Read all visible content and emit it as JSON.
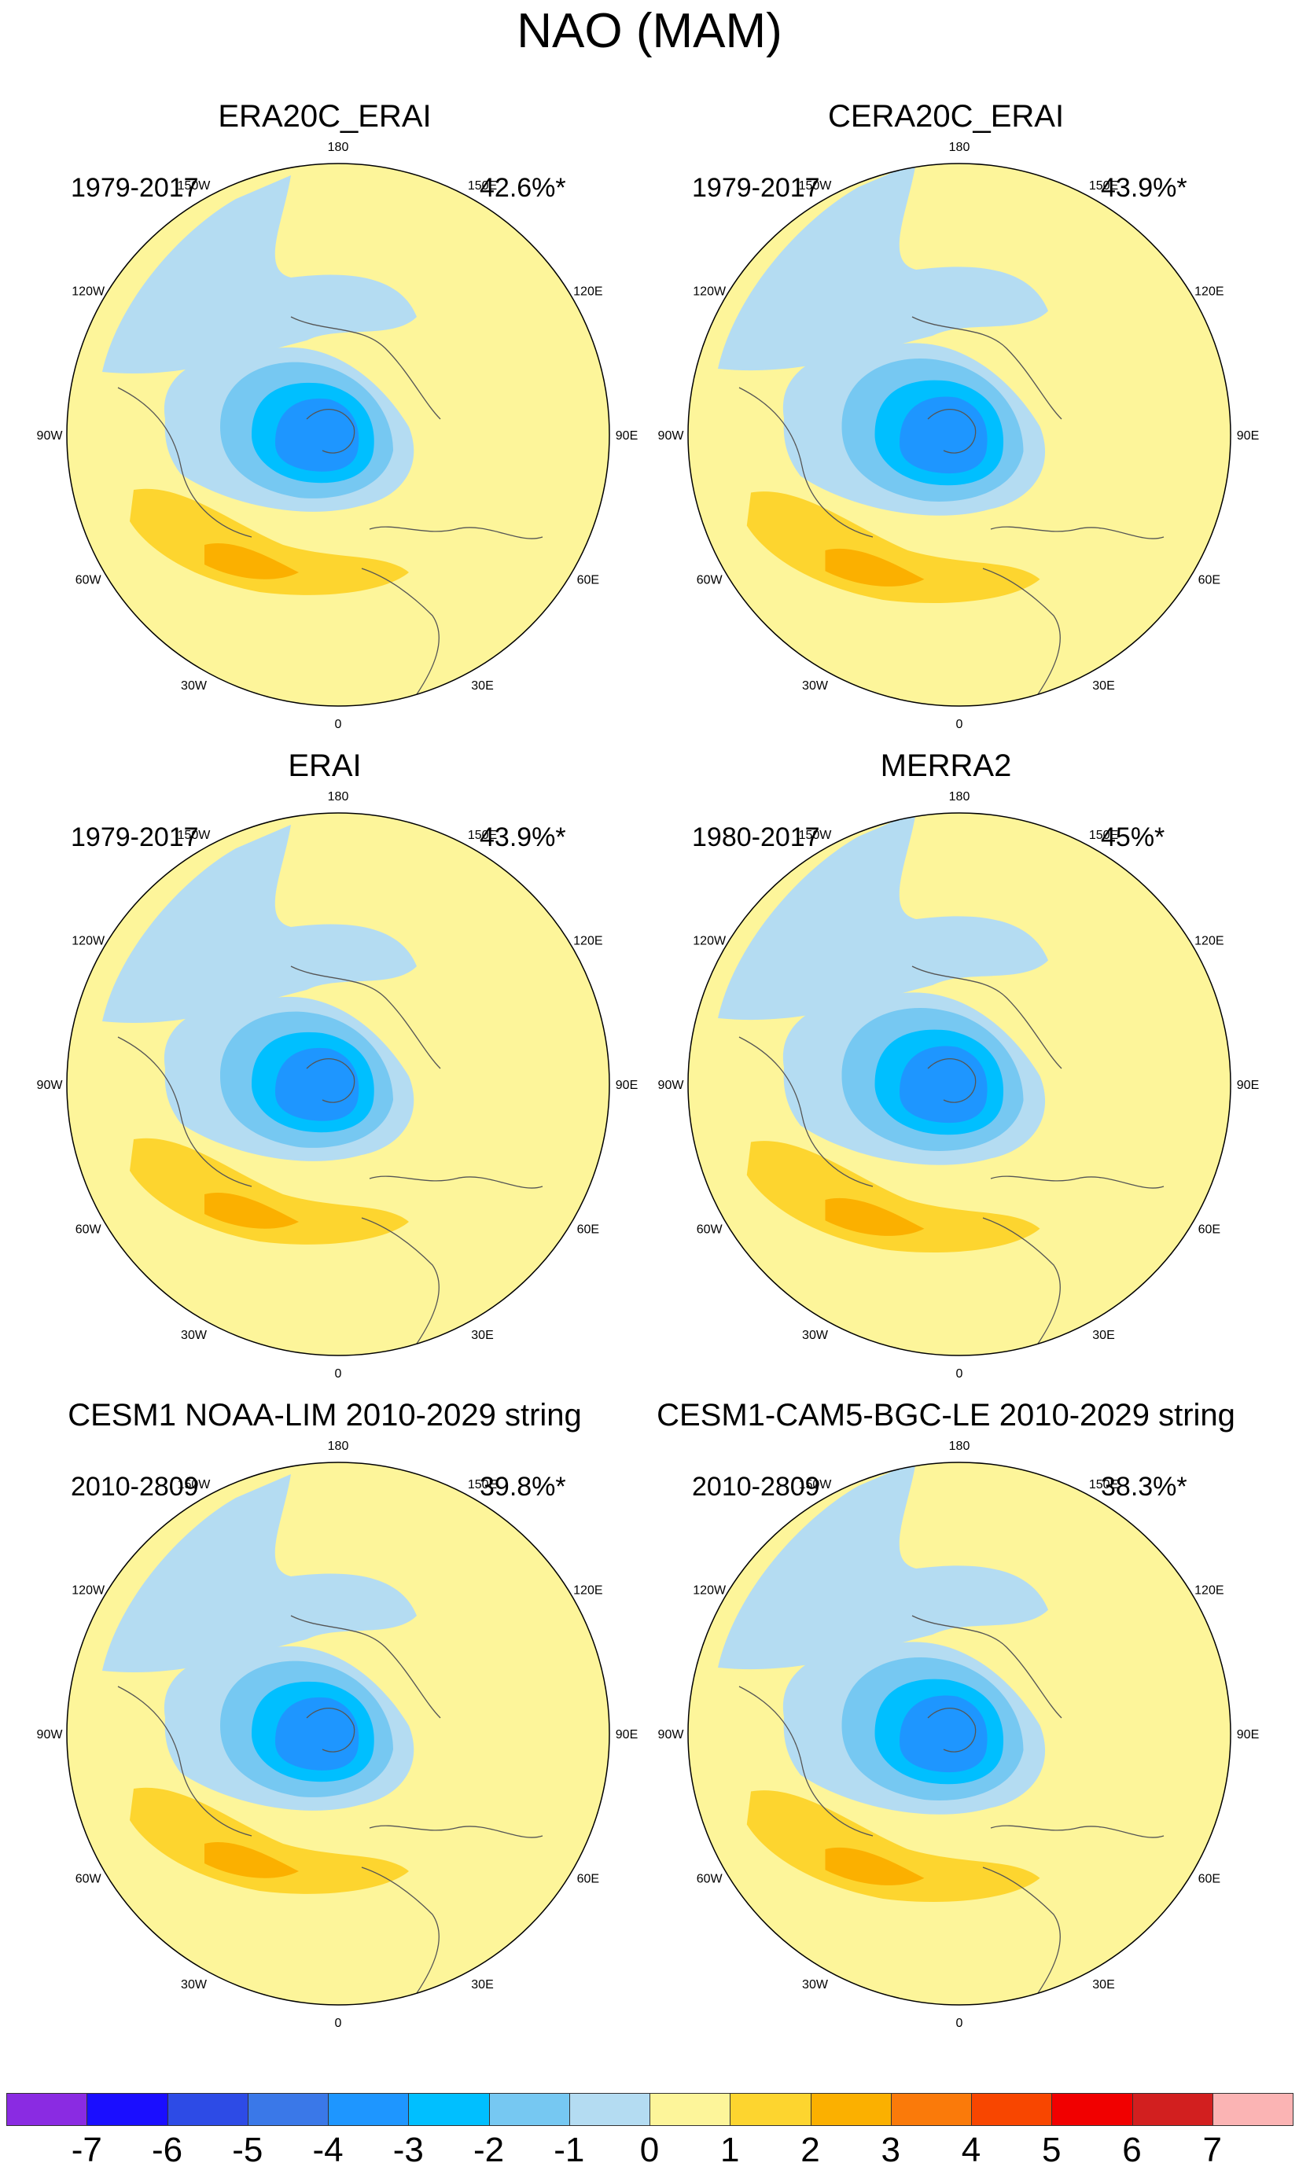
{
  "title": "NAO (MAM)",
  "colors": {
    "neg7": "#8a2be2",
    "neg6": "#1a0eff",
    "neg5": "#2d4be6",
    "neg4": "#3a78e8",
    "neg3": "#1e96ff",
    "neg2": "#00bfff",
    "neg1": "#76c8f2",
    "neg0": "#b4dcf2",
    "pos0": "#fdf59a",
    "pos1": "#fdd52f",
    "pos2": "#fbb000",
    "pos3": "#fa7a0a",
    "pos4": "#f84600",
    "pos5": "#f10000",
    "pos6": "#d21f1f",
    "pos7": "#fbb4b4",
    "coast": "#555555",
    "border": "#000000"
  },
  "longitude_labels": [
    "180",
    "150E",
    "120E",
    "90E",
    "60E",
    "30E",
    "0",
    "30W",
    "60W",
    "90W",
    "120W",
    "150W"
  ],
  "panels": [
    {
      "name": "ERA20C_ERAI",
      "period": "1979-2017",
      "variance": "42.6%*"
    },
    {
      "name": "CERA20C_ERAI",
      "period": "1979-2017",
      "variance": "43.9%*"
    },
    {
      "name": "ERAI",
      "period": "1979-2017",
      "variance": "43.9%*"
    },
    {
      "name": "MERRA2",
      "period": "1980-2017",
      "variance": "45%*"
    },
    {
      "name": "CESM1 NOAA-LIM 2010-2029 string",
      "period": "2010-2809",
      "variance": "39.8%*"
    },
    {
      "name": "CESM1-CAM5-BGC-LE 2010-2029 string",
      "period": "2010-2809",
      "variance": "38.3%*"
    }
  ],
  "colorbar": {
    "labels": [
      "-7",
      "-6",
      "-5",
      "-4",
      "-3",
      "-2",
      "-1",
      "0",
      "1",
      "2",
      "3",
      "4",
      "5",
      "6",
      "7"
    ],
    "colors": [
      "#8a2be2",
      "#1a0eff",
      "#2d4be6",
      "#3a78e8",
      "#1e96ff",
      "#00bfff",
      "#76c8f2",
      "#b4dcf2",
      "#fdf59a",
      "#fdd52f",
      "#fbb000",
      "#fa7a0a",
      "#f84600",
      "#f10000",
      "#d21f1f",
      "#fbb4b4"
    ]
  }
}
